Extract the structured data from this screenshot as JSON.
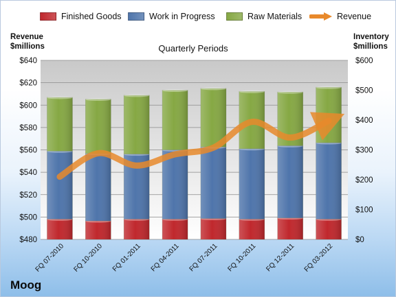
{
  "company": "Moog",
  "legend": [
    {
      "name": "Finished Goods",
      "color": "#c0282d",
      "kind": "bar"
    },
    {
      "name": "Work in Progress",
      "color": "#4f75ab",
      "kind": "bar"
    },
    {
      "name": "Raw Materials",
      "color": "#86a844",
      "kind": "bar"
    },
    {
      "name": "Revenue",
      "color": "#e8892b",
      "kind": "arrow"
    }
  ],
  "chart_data": {
    "type": "bar",
    "stacked": true,
    "title": "Quarterly Periods",
    "ylabel_left": "Revenue $millions",
    "ylabel_right": "Inventory $millions",
    "ylabel_left_lines": [
      "Revenue",
      "$millions"
    ],
    "ylabel_right_lines": [
      "Inventory",
      "$millions"
    ],
    "categories": [
      "FQ 07-2010",
      "FQ 10-2010",
      "FQ 01-2011",
      "FQ 04-2011",
      "FQ 07-2011",
      "FQ 10-2011",
      "FQ 12-2011",
      "FQ 03-2012"
    ],
    "ylim_left": [
      480,
      640
    ],
    "ylim_right": [
      0,
      600
    ],
    "yticks_left": [
      "$480",
      "$500",
      "$520",
      "$540",
      "$560",
      "$580",
      "$600",
      "$620",
      "$640"
    ],
    "yticks_right": [
      "$0",
      "$100",
      "$200",
      "$300",
      "$400",
      "$500",
      "$600"
    ],
    "grid": true,
    "legend_position": "top",
    "series": [
      {
        "name": "Finished Goods",
        "axis": "right",
        "color": "#c0282d",
        "values": [
          68,
          62,
          68,
          68,
          70,
          68,
          72,
          68
        ]
      },
      {
        "name": "Work in Progress",
        "axis": "right",
        "color": "#4f75ab",
        "values": [
          228,
          226,
          218,
          232,
          240,
          236,
          242,
          256
        ]
      },
      {
        "name": "Raw Materials",
        "axis": "right",
        "color": "#86a844",
        "values": [
          180,
          182,
          197,
          200,
          196,
          192,
          180,
          186
        ]
      },
      {
        "name": "Revenue",
        "axis": "left",
        "color": "#e8892b",
        "type": "line",
        "values": [
          536,
          557,
          546,
          556,
          562,
          585,
          571,
          586
        ]
      }
    ]
  }
}
